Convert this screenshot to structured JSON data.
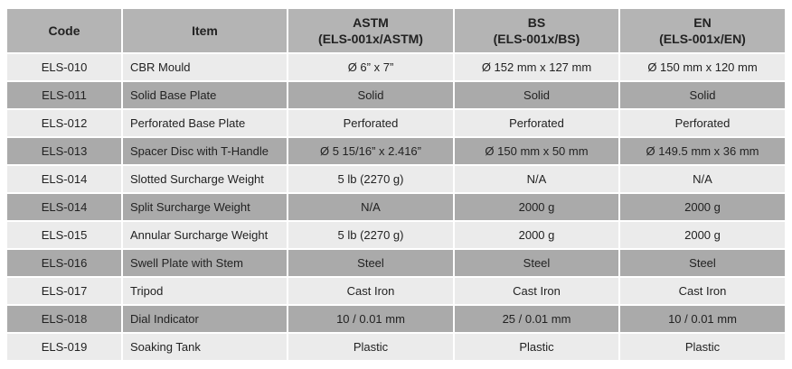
{
  "table": {
    "columns": [
      {
        "title": "Code"
      },
      {
        "title": "Item"
      },
      {
        "title": "ASTM",
        "subtitle": "(ELS-001x/ASTM)"
      },
      {
        "title": "BS",
        "subtitle": "(ELS-001x/BS)"
      },
      {
        "title": "EN",
        "subtitle": "(ELS-001x/EN)"
      }
    ],
    "rows": [
      [
        "ELS-010",
        "CBR Mould",
        "Ø 6” x 7”",
        "Ø 152 mm x 127 mm",
        "Ø 150 mm x 120 mm"
      ],
      [
        "ELS-011",
        "Solid Base Plate",
        "Solid",
        "Solid",
        "Solid"
      ],
      [
        "ELS-012",
        "Perforated Base Plate",
        "Perforated",
        "Perforated",
        "Perforated"
      ],
      [
        "ELS-013",
        "Spacer Disc with T-Handle",
        "Ø 5 15/16” x 2.416”",
        "Ø 150 mm x 50 mm",
        "Ø 149.5 mm x 36 mm"
      ],
      [
        "ELS-014",
        "Slotted Surcharge Weight",
        "5 lb (2270 g)",
        "N/A",
        "N/A"
      ],
      [
        "ELS-014",
        "Split Surcharge Weight",
        "N/A",
        "2000 g",
        "2000 g"
      ],
      [
        "ELS-015",
        "Annular Surcharge Weight",
        "5 lb (2270 g)",
        "2000 g",
        "2000 g"
      ],
      [
        "ELS-016",
        "Swell Plate with Stem",
        "Steel",
        "Steel",
        "Steel"
      ],
      [
        "ELS-017",
        "Tripod",
        "Cast Iron",
        "Cast Iron",
        "Cast Iron"
      ],
      [
        "ELS-018",
        "Dial Indicator",
        "10 / 0.01 mm",
        "25 / 0.01 mm",
        "10 / 0.01 mm"
      ],
      [
        "ELS-019",
        "Soaking Tank",
        "Plastic",
        "Plastic",
        "Plastic"
      ]
    ]
  }
}
